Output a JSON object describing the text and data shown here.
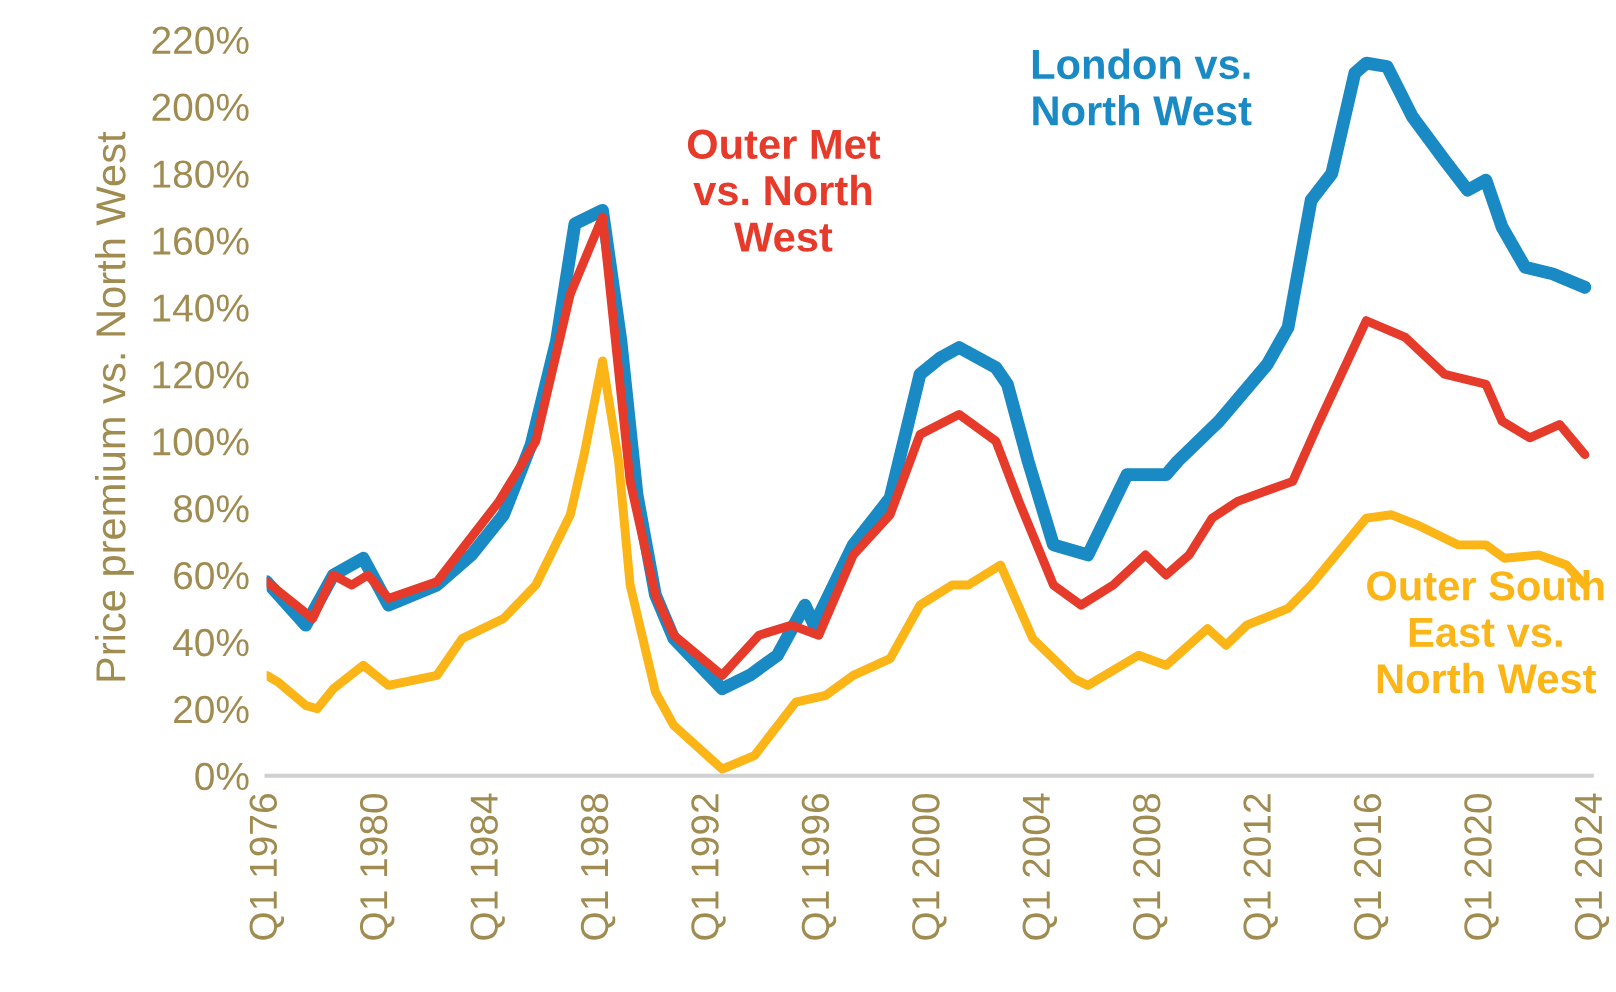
{
  "chart_data": {
    "type": "line",
    "ylabel": "Price premium vs. North West",
    "xlim": [
      "1976-01",
      "2024-01"
    ],
    "ylim": [
      0,
      220
    ],
    "xticks": [
      {
        "value": "1976-01",
        "label": "Q1 1976"
      },
      {
        "value": "1980-01",
        "label": "Q1 1980"
      },
      {
        "value": "1984-01",
        "label": "Q1 1984"
      },
      {
        "value": "1988-01",
        "label": "Q1 1988"
      },
      {
        "value": "1992-01",
        "label": "Q1 1992"
      },
      {
        "value": "1996-01",
        "label": "Q1 1996"
      },
      {
        "value": "2000-01",
        "label": "Q1 2000"
      },
      {
        "value": "2004-01",
        "label": "Q1 2004"
      },
      {
        "value": "2008-01",
        "label": "Q1 2008"
      },
      {
        "value": "2012-01",
        "label": "Q1 2012"
      },
      {
        "value": "2016-01",
        "label": "Q1 2016"
      },
      {
        "value": "2020-01",
        "label": "Q1 2020"
      },
      {
        "value": "2024-01",
        "label": "Q1 2024"
      }
    ],
    "yticks": [
      {
        "value": 0,
        "label": "0%"
      },
      {
        "value": 20,
        "label": "20%"
      },
      {
        "value": 40,
        "label": "40%"
      },
      {
        "value": 60,
        "label": "60%"
      },
      {
        "value": 80,
        "label": "80%"
      },
      {
        "value": 100,
        "label": "100%"
      },
      {
        "value": 120,
        "label": "120%"
      },
      {
        "value": 140,
        "label": "140%"
      },
      {
        "value": 160,
        "label": "160%"
      },
      {
        "value": 180,
        "label": "180%"
      },
      {
        "value": 200,
        "label": "200%"
      },
      {
        "value": 220,
        "label": "220%"
      }
    ],
    "grid": false,
    "legend": false,
    "marker": "none",
    "line_style": "solid",
    "series": [
      {
        "name": "London vs. North West",
        "color": "#1a8ac4",
        "x": [
          "1976-01",
          "1977-06",
          "1978-06",
          "1979-07",
          "1980-06",
          "1982-03",
          "1983-06",
          "1984-08",
          "1985-08",
          "1986-07",
          "1987-03",
          "1988-03",
          "1988-11",
          "1989-06",
          "1990-02",
          "1990-10",
          "1992-07",
          "1993-07",
          "1994-07",
          "1995-07",
          "1995-11",
          "1997-04",
          "1998-08",
          "1999-09",
          "2000-06",
          "2001-02",
          "2002-06",
          "2002-11",
          "2003-08",
          "2004-07",
          "2005-10",
          "2007-03",
          "2008-08",
          "2009-01",
          "2010-07",
          "2012-04",
          "2013-01",
          "2013-11",
          "2014-08",
          "2015-06",
          "2015-11",
          "2016-08",
          "2017-07",
          "2018-09",
          "2019-07",
          "2020-03",
          "2020-10",
          "2021-08",
          "2022-08",
          "2023-10"
        ],
        "values": [
          58,
          45,
          60,
          65,
          51,
          57,
          66,
          78,
          99,
          130,
          165,
          169,
          130,
          84,
          54,
          41,
          26,
          30,
          36,
          51,
          45,
          69,
          83,
          120,
          125,
          128,
          122,
          117,
          94,
          69,
          66,
          90,
          90,
          94,
          106,
          123,
          134,
          172,
          180,
          210,
          213,
          212,
          197,
          184,
          175,
          178,
          164,
          152,
          150,
          146
        ]
      },
      {
        "name": "Outer Met vs. North West",
        "color": "#e63a2a",
        "x": [
          "1976-01",
          "1977-09",
          "1978-06",
          "1979-02",
          "1979-09",
          "1980-06",
          "1982-03",
          "1984-06",
          "1985-10",
          "1987-01",
          "1988-03",
          "1989-03",
          "1990-02",
          "1990-10",
          "1992-07",
          "1993-11",
          "1995-01",
          "1996-01",
          "1997-04",
          "1998-08",
          "1999-09",
          "2001-02",
          "2002-06",
          "2003-04",
          "2004-07",
          "2005-07",
          "2006-09",
          "2007-11",
          "2008-08",
          "2009-06",
          "2010-04",
          "2011-03",
          "2013-03",
          "2014-02",
          "2015-11",
          "2017-04",
          "2018-09",
          "2020-03",
          "2020-10",
          "2021-10",
          "2022-11",
          "2023-10"
        ],
        "values": [
          58,
          47,
          60,
          57,
          60,
          53,
          58,
          82,
          100,
          144,
          167,
          88,
          54,
          42,
          30,
          42,
          45,
          42,
          66,
          78,
          102,
          108,
          100,
          82,
          57,
          51,
          57,
          66,
          60,
          66,
          77,
          82,
          88,
          105,
          136,
          131,
          120,
          117,
          106,
          101,
          105,
          96
        ]
      },
      {
        "name": "Outer South East vs. North West",
        "color": "#fbb516",
        "x": [
          "1976-01",
          "1976-06",
          "1977-06",
          "1977-11",
          "1978-06",
          "1979-07",
          "1980-06",
          "1982-03",
          "1983-02",
          "1984-08",
          "1985-10",
          "1987-01",
          "1987-07",
          "1988-03",
          "1988-10",
          "1989-03",
          "1990-02",
          "1990-10",
          "1992-07",
          "1993-09",
          "1995-03",
          "1996-04",
          "1997-04",
          "1998-08",
          "1999-09",
          "2000-11",
          "2001-06",
          "2002-08",
          "2003-10",
          "2005-04",
          "2005-10",
          "2007-08",
          "2008-08",
          "2010-02",
          "2010-10",
          "2011-07",
          "2013-01",
          "2013-11",
          "2015-11",
          "2016-10",
          "2017-09",
          "2019-03",
          "2020-03",
          "2020-11",
          "2022-02",
          "2023-02",
          "2023-10"
        ],
        "values": [
          30,
          28,
          21,
          20,
          26,
          33,
          27,
          30,
          41,
          47,
          57,
          78,
          96,
          124,
          94,
          57,
          25,
          15,
          2,
          6,
          22,
          24,
          30,
          35,
          51,
          57,
          57,
          63,
          41,
          29,
          27,
          36,
          33,
          44,
          39,
          45,
          50,
          57,
          77,
          78,
          75,
          69,
          69,
          65,
          66,
          63,
          57
        ]
      }
    ]
  }
}
